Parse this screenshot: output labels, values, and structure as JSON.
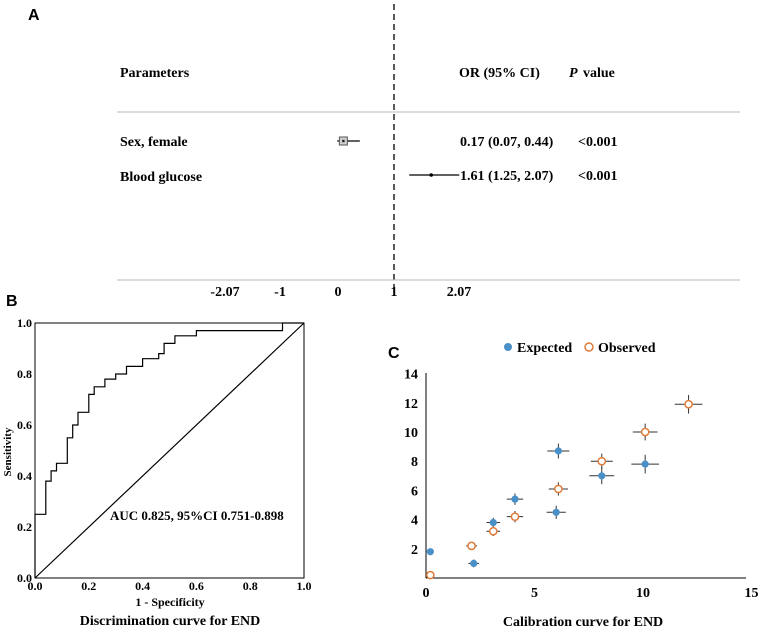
{
  "chart_data": [
    {
      "panel": "A",
      "type": "forest",
      "headers": {
        "parameters": "Parameters",
        "or_ci": "OR (95% CI)",
        "p_italic": "P",
        "p_rest": "value"
      },
      "rows": [
        {
          "label": "Sex, female",
          "or": 0.17,
          "lower": 0.07,
          "upper": 0.44,
          "or_text": "0.17 (0.07, 0.44)",
          "p_text": "<0.001"
        },
        {
          "label": "Blood glucose",
          "or": 1.61,
          "lower": 1.25,
          "upper": 2.07,
          "or_text": "1.61 (1.25, 2.07)",
          "p_text": "<0.001"
        }
      ],
      "reference_value": 1,
      "xticks": [
        -2.07,
        -1,
        0,
        1,
        2.07
      ],
      "xtick_labels": [
        "-2.07",
        "-1",
        "0",
        "1",
        "2.07"
      ],
      "xlim": [
        -2.9,
        3.0
      ]
    },
    {
      "panel": "B",
      "type": "line",
      "title": "Discrimination curve for END",
      "xlabel": "1 - Specificity",
      "ylabel": "Sensitivity",
      "annotation": "AUC 0.825, 95%CI 0.751-0.898",
      "xlim": [
        0,
        1
      ],
      "ylim": [
        0,
        1
      ],
      "xticks": [
        "0.0",
        "0.2",
        "0.4",
        "0.6",
        "0.8",
        "1.0"
      ],
      "yticks": [
        "0.0",
        "0.2",
        "0.4",
        "0.6",
        "0.8",
        "1.0"
      ],
      "roc": [
        [
          0,
          0
        ],
        [
          0,
          0.25
        ],
        [
          0.04,
          0.25
        ],
        [
          0.04,
          0.38
        ],
        [
          0.06,
          0.38
        ],
        [
          0.06,
          0.42
        ],
        [
          0.08,
          0.42
        ],
        [
          0.08,
          0.45
        ],
        [
          0.12,
          0.45
        ],
        [
          0.12,
          0.55
        ],
        [
          0.14,
          0.55
        ],
        [
          0.14,
          0.6
        ],
        [
          0.16,
          0.6
        ],
        [
          0.16,
          0.65
        ],
        [
          0.2,
          0.65
        ],
        [
          0.2,
          0.72
        ],
        [
          0.22,
          0.72
        ],
        [
          0.22,
          0.75
        ],
        [
          0.26,
          0.75
        ],
        [
          0.26,
          0.78
        ],
        [
          0.3,
          0.78
        ],
        [
          0.3,
          0.8
        ],
        [
          0.34,
          0.8
        ],
        [
          0.34,
          0.83
        ],
        [
          0.4,
          0.83
        ],
        [
          0.4,
          0.86
        ],
        [
          0.46,
          0.86
        ],
        [
          0.46,
          0.88
        ],
        [
          0.48,
          0.88
        ],
        [
          0.48,
          0.92
        ],
        [
          0.52,
          0.92
        ],
        [
          0.52,
          0.95
        ],
        [
          0.6,
          0.95
        ],
        [
          0.6,
          0.97
        ],
        [
          0.92,
          0.97
        ],
        [
          0.92,
          1.0
        ],
        [
          1.0,
          1.0
        ]
      ],
      "reference_line": [
        [
          0,
          0
        ],
        [
          1,
          1
        ]
      ]
    },
    {
      "panel": "C",
      "type": "scatter",
      "title": "Calibration curve for END",
      "xlim": [
        0,
        15
      ],
      "ylim": [
        0,
        14
      ],
      "xticks": [
        0,
        5,
        10,
        15
      ],
      "yticks": [
        2,
        4,
        6,
        8,
        10,
        12,
        14
      ],
      "series": [
        {
          "name": "Expected",
          "color": "#4a90c8",
          "points": [
            [
              0.2,
              1.8
            ],
            [
              2.2,
              1.0
            ],
            [
              3.1,
              3.8
            ],
            [
              4.1,
              5.4
            ],
            [
              6.0,
              4.5
            ],
            [
              6.1,
              8.7
            ],
            [
              8.1,
              7.0
            ],
            [
              10.1,
              7.8
            ]
          ]
        },
        {
          "name": "Observed",
          "color": "#e07b39",
          "points": [
            [
              0.2,
              0.2
            ],
            [
              2.1,
              2.2
            ],
            [
              3.1,
              3.2
            ],
            [
              4.1,
              4.2
            ],
            [
              6.1,
              6.1
            ],
            [
              8.1,
              8.0
            ],
            [
              10.1,
              10.0
            ],
            [
              12.1,
              11.9
            ]
          ]
        }
      ]
    }
  ]
}
